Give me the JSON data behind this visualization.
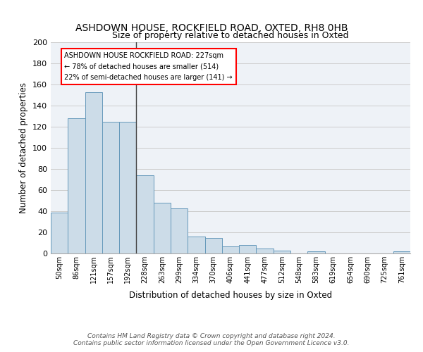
{
  "title1": "ASHDOWN HOUSE, ROCKFIELD ROAD, OXTED, RH8 0HB",
  "title2": "Size of property relative to detached houses in Oxted",
  "xlabel": "Distribution of detached houses by size in Oxted",
  "ylabel": "Number of detached properties",
  "bin_labels": [
    "50sqm",
    "86sqm",
    "121sqm",
    "157sqm",
    "192sqm",
    "228sqm",
    "263sqm",
    "299sqm",
    "334sqm",
    "370sqm",
    "406sqm",
    "441sqm",
    "477sqm",
    "512sqm",
    "548sqm",
    "583sqm",
    "619sqm",
    "654sqm",
    "690sqm",
    "725sqm",
    "761sqm"
  ],
  "bar_heights": [
    39,
    128,
    153,
    125,
    125,
    74,
    48,
    43,
    16,
    15,
    7,
    8,
    5,
    3,
    0,
    2,
    0,
    0,
    0,
    0,
    2
  ],
  "bar_color": "#ccdce8",
  "bar_edge_color": "#6699bb",
  "annotation_line1": "ASHDOWN HOUSE ROCKFIELD ROAD: 227sqm",
  "annotation_line2": "← 78% of detached houses are smaller (514)",
  "annotation_line3": "22% of semi-detached houses are larger (141) →",
  "footer1": "Contains HM Land Registry data © Crown copyright and database right 2024.",
  "footer2": "Contains public sector information licensed under the Open Government Licence v3.0.",
  "ylim": [
    0,
    200
  ],
  "yticks": [
    0,
    20,
    40,
    60,
    80,
    100,
    120,
    140,
    160,
    180,
    200
  ],
  "plot_bg_color": "#eef2f7",
  "vline_x": 4.5
}
